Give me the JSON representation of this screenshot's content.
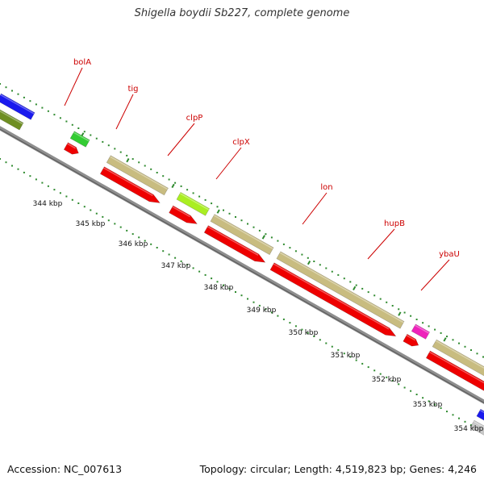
{
  "title": "Shigella boydii Sb227, complete genome",
  "footer": {
    "accession": "Accession: NC_007613",
    "summary": "Topology: circular; Length: 4,519,823 bp; Genes: 4,246"
  },
  "colors": {
    "backbone": "#8e8e8e",
    "cds": "#ee0000",
    "gene": "#c8bc80",
    "label": "#cc0000",
    "dotted_track": "#2f8a2f",
    "feature_green": "#33cc33",
    "feature_lime": "#aaee22",
    "feature_magenta": "#ee22bb",
    "feature_blue": "#1a1aee",
    "feature_olive": "#6e8e22",
    "feature_grey": "#c8c8c8"
  },
  "map": {
    "kbp_labels": [
      "344 kbp",
      "345 kbp",
      "346 kbp",
      "347 kbp",
      "348 kbp",
      "349 kbp",
      "350 kbp",
      "351 kbp",
      "352 kbp",
      "353 kbp",
      "354 kbp"
    ],
    "genes": [
      {
        "name": "bolA"
      },
      {
        "name": "tig"
      },
      {
        "name": "clpP"
      },
      {
        "name": "clpX"
      },
      {
        "name": "lon"
      },
      {
        "name": "hupB"
      },
      {
        "name": "ybaU"
      }
    ]
  }
}
